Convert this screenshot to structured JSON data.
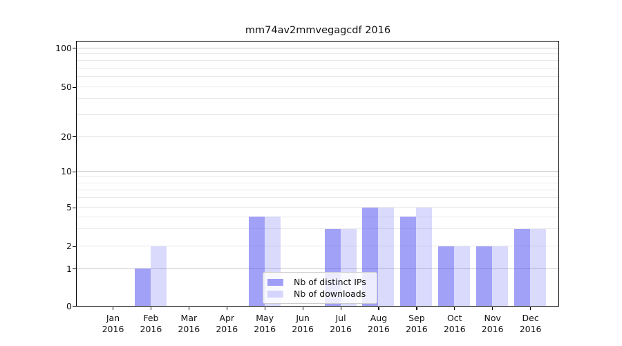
{
  "title": "mm74av2mmvegagcdf 2016",
  "chart_data": {
    "type": "bar",
    "x_month_labels": [
      "Jan",
      "Feb",
      "Mar",
      "Apr",
      "May",
      "Jun",
      "Jul",
      "Aug",
      "Sep",
      "Oct",
      "Nov",
      "Dec"
    ],
    "x_year_label": "2016",
    "series": [
      {
        "name": "Nb of distinct IPs",
        "values": [
          0,
          1,
          0,
          0,
          4,
          0,
          3,
          5,
          4,
          2,
          2,
          3
        ],
        "color": "rgba(88,88,240,0.56)"
      },
      {
        "name": "Nb of downloads",
        "values": [
          0,
          2,
          0,
          0,
          4,
          0,
          3,
          5,
          5,
          2,
          2,
          3
        ],
        "color": "rgba(88,88,240,0.22)"
      }
    ],
    "y_axis": {
      "scale": "log-like (log above 1, linear 0-1 segment)",
      "major_ticks": [
        0,
        1,
        2,
        5,
        10,
        20,
        50,
        100
      ],
      "tick_labels": [
        "0",
        "1",
        "2",
        "5",
        "10",
        "20",
        "50",
        "100"
      ],
      "minor_gridlines": [
        3,
        4,
        6,
        7,
        8,
        9,
        30,
        40,
        60,
        70,
        80,
        90
      ],
      "emphasized_gridlines": [
        1,
        10,
        100
      ],
      "range": [
        0,
        110
      ]
    },
    "grid": true,
    "legend_position": "lower-center-inside"
  },
  "legend": {
    "items": [
      {
        "label": "Nb of distinct IPs",
        "swatch_color": "rgba(88,88,240,0.56)"
      },
      {
        "label": "Nb of downloads",
        "swatch_color": "rgba(88,88,240,0.22)"
      }
    ]
  },
  "colors": {
    "grid_minor": "#e9e9e9",
    "grid_major": "#c9c9c9",
    "spine": "#000000",
    "text": "#111111",
    "background": "#ffffff"
  }
}
